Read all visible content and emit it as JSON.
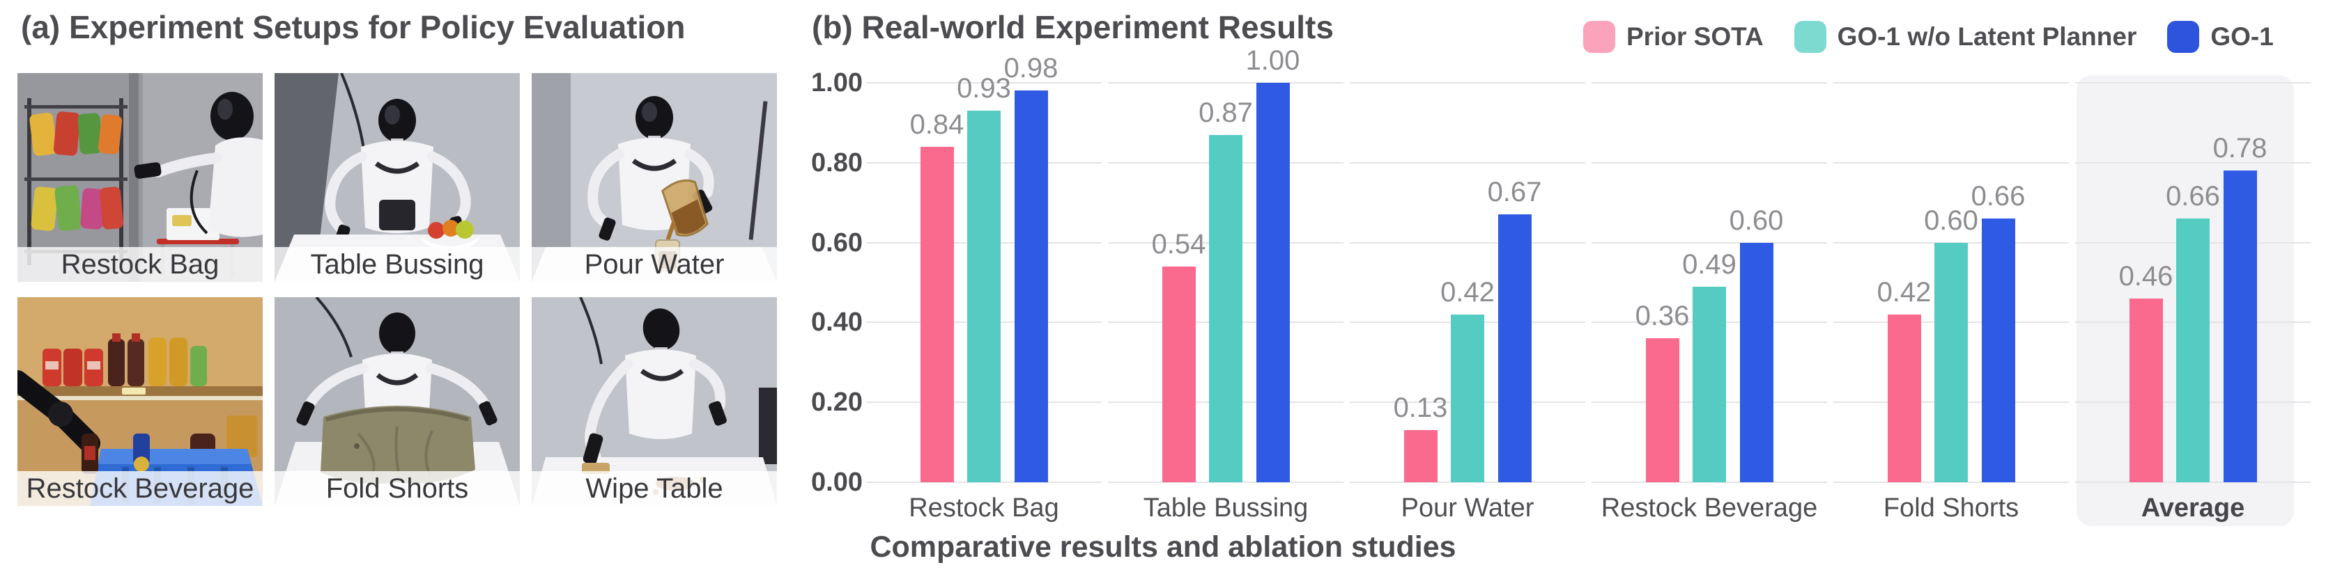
{
  "panel_a": {
    "title": "(a) Experiment Setups for Policy Evaluation",
    "photos": [
      {
        "label": "Restock Bag"
      },
      {
        "label": "Table Bussing"
      },
      {
        "label": "Pour Water"
      },
      {
        "label": "Restock Beverage"
      },
      {
        "label": "Fold Shorts"
      },
      {
        "label": "Wipe Table"
      }
    ]
  },
  "panel_b": {
    "title": "(b) Real-world Experiment Results",
    "caption": "Comparative results and ablation studies",
    "legend": [
      {
        "label": "Prior SOTA",
        "color": "#FBA3BA"
      },
      {
        "label": "GO-1 w/o Latent Planner",
        "color": "#7DDAD1"
      },
      {
        "label": "GO-1",
        "color": "#2E53DD"
      }
    ]
  },
  "chart_data": {
    "type": "bar",
    "title": "(b) Real-world Experiment Results",
    "categories": [
      "Restock Bag",
      "Table Bussing",
      "Pour Water",
      "Restock Beverage",
      "Fold Shorts",
      "Average"
    ],
    "series": [
      {
        "name": "Prior SOTA",
        "color": "#FA6A8F",
        "values": [
          0.84,
          0.54,
          0.13,
          0.36,
          0.42,
          0.46
        ]
      },
      {
        "name": "GO-1 w/o Latent Planner",
        "color": "#54CCC2",
        "values": [
          0.93,
          0.87,
          0.42,
          0.49,
          0.6,
          0.66
        ]
      },
      {
        "name": "GO-1",
        "color": "#2F5AE4",
        "values": [
          0.98,
          1.0,
          0.67,
          0.6,
          0.66,
          0.78
        ]
      }
    ],
    "ylabel": "",
    "ylim": [
      0,
      1.0
    ],
    "yticks": [
      "0.00",
      "0.20",
      "0.40",
      "0.60",
      "0.80",
      "1.00"
    ],
    "grid": true,
    "legend_position": "top-right",
    "highlight_category": "Average",
    "highlight_color": "#f3f3f5",
    "gridline_color": "#e4e4e7",
    "value_label_color": "#8d8d91"
  }
}
